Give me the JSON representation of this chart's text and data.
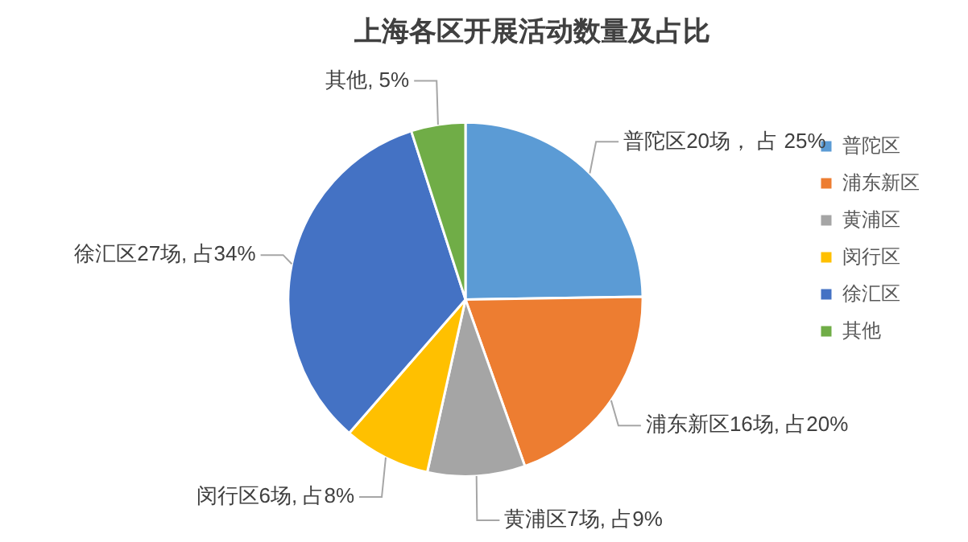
{
  "chart_data": {
    "type": "pie",
    "title": "上海各区开展活动数量及占比",
    "categories": [
      "普陀区",
      "浦东新区",
      "黄浦区",
      "闵行区",
      "徐汇区",
      "其他"
    ],
    "values": [
      25,
      20,
      9,
      8,
      34,
      5
    ],
    "colors": [
      "#5b9bd5",
      "#ed7d31",
      "#a5a5a5",
      "#ffc000",
      "#4472c4",
      "#70ad47"
    ],
    "value_labels": [
      "普陀区20场， 占 25%",
      "浦东新区16场, 占20%",
      "黄浦区7场, 占9%",
      "闵行区6场, 占8%",
      "徐汇区27场, 占34%",
      "其他, 5%"
    ],
    "legend": "right"
  }
}
